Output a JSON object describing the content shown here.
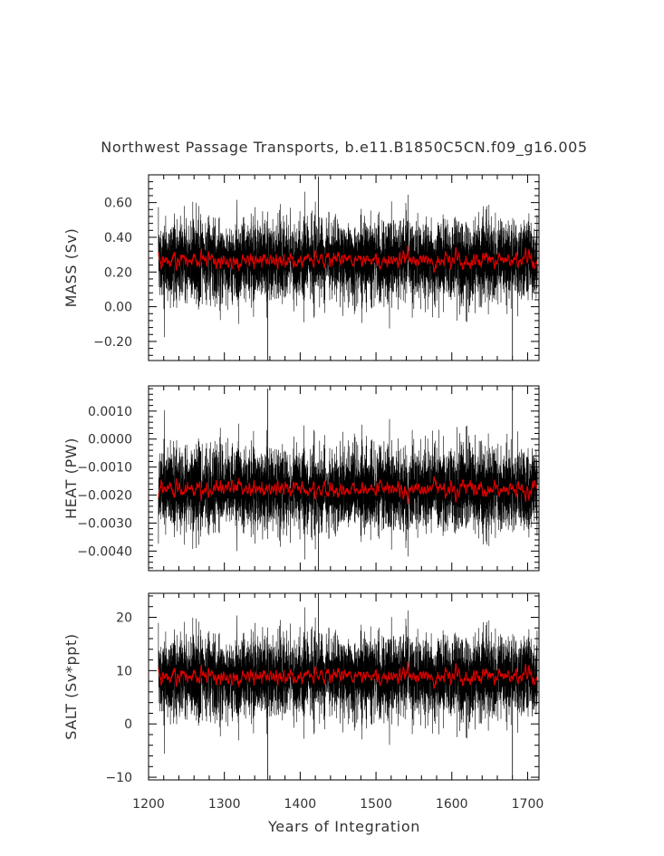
{
  "figure": {
    "title": "Northwest Passage Transports, b.e11.B1850C5CN.f09_g16.005",
    "xlabel": "Years of Integration"
  },
  "colors": {
    "raw": "#000000",
    "smoothed": "#e00000",
    "frame": "#000000",
    "text": "#333333"
  },
  "chart_data": [
    {
      "type": "line",
      "name": "mass",
      "ylabel": "MASS (Sv)",
      "xlim": [
        1200,
        1715
      ],
      "ylim": [
        -0.31,
        0.76
      ],
      "xticks": [
        1200,
        1300,
        1400,
        1500,
        1600,
        1700
      ],
      "yticks": [
        -0.2,
        0.0,
        0.2,
        0.4,
        0.6
      ],
      "ytick_labels": [
        "−0.20",
        "0.00",
        "0.20",
        "0.40",
        "0.60"
      ],
      "x_start": 1213,
      "x_end": 1713,
      "mean": 0.27,
      "sd": 0.11,
      "running_mean_sd": 0.025,
      "approx_min": -0.31,
      "approx_max": 0.75,
      "series": [
        {
          "name": "",
          "kind": "monthly raw"
        },
        {
          "name": "",
          "kind": "annual smoothed"
        }
      ]
    },
    {
      "type": "line",
      "name": "heat",
      "ylabel": "HEAT (PW)",
      "xlim": [
        1200,
        1715
      ],
      "ylim": [
        -0.0047,
        0.0019
      ],
      "xticks": [
        1200,
        1300,
        1400,
        1500,
        1600,
        1700
      ],
      "yticks": [
        -0.004,
        -0.003,
        -0.002,
        -0.001,
        0.0,
        0.001
      ],
      "ytick_labels": [
        "−0.0040",
        "−0.0030",
        "−0.0020",
        "−0.0010",
        "0.0000",
        "0.0010"
      ],
      "x_start": 1213,
      "x_end": 1713,
      "mean": -0.0018,
      "sd": 0.0007,
      "running_mean_sd": 0.00016,
      "approx_min": -0.0047,
      "approx_max": 0.0018,
      "series": [
        {
          "name": "",
          "kind": "monthly raw"
        },
        {
          "name": "",
          "kind": "annual smoothed"
        }
      ]
    },
    {
      "type": "line",
      "name": "salt",
      "ylabel": "SALT (Sv*ppt)",
      "xlim": [
        1200,
        1715
      ],
      "ylim": [
        -10.5,
        24.5
      ],
      "xticks": [
        1200,
        1300,
        1400,
        1500,
        1600,
        1700
      ],
      "yticks": [
        -10,
        0,
        10,
        20
      ],
      "ytick_labels": [
        "−10",
        "0",
        "10",
        "20"
      ],
      "x_start": 1213,
      "x_end": 1713,
      "mean": 9.0,
      "sd": 3.6,
      "running_mean_sd": 0.8,
      "approx_min": -10.5,
      "approx_max": 24.5,
      "series": [
        {
          "name": "",
          "kind": "monthly raw"
        },
        {
          "name": "",
          "kind": "annual smoothed"
        }
      ]
    }
  ]
}
